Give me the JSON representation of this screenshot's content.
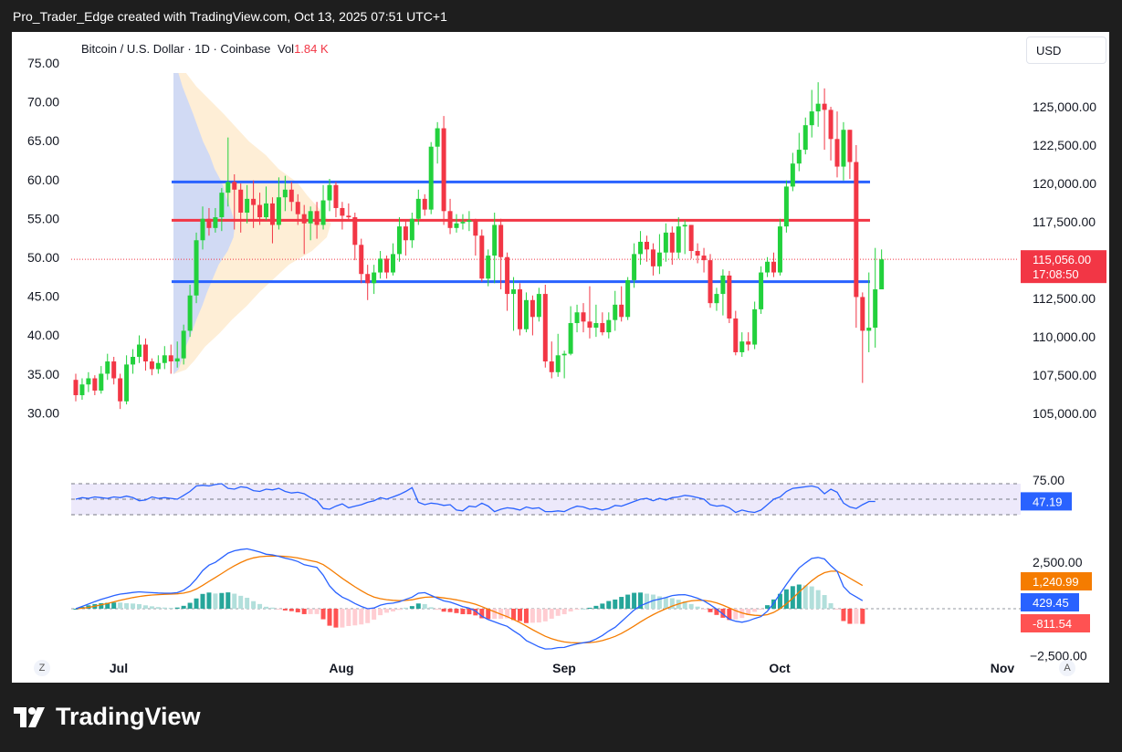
{
  "header": {
    "text": "Pro_Trader_Edge created with TradingView.com, Oct 13, 2025 07:51 UTC+1"
  },
  "legend": {
    "symbol": "Bitcoin / U.S. Dollar · 1D · Coinbase",
    "vol_label": "Vol",
    "vol_value": "1.84 K"
  },
  "currency_button": "USD",
  "brand": "TradingView",
  "buttons": {
    "left": "Z",
    "right": "A"
  },
  "colors": {
    "up": "#22d13c",
    "down": "#f23645",
    "support": "#2962ff",
    "pivot": "#f23645",
    "rsi": "#2962ff",
    "macd": "#2962ff",
    "signal": "#f57c00",
    "hist_up": "#26a69a",
    "hist_up_light": "#b2dfdb",
    "hist_down": "#ff5252",
    "hist_down_light": "#ffcdd2"
  },
  "chart_data": {
    "type": "candlestick",
    "x_labels": [
      "Jul",
      "Aug",
      "Sep",
      "Oct",
      "Nov"
    ],
    "left_axis": {
      "ticks": [
        "75.00",
        "70.00",
        "65.00",
        "60.00",
        "55.00",
        "50.00",
        "45.00",
        "40.00",
        "35.00",
        "30.00"
      ]
    },
    "right_axis": {
      "ticks": [
        "125,000.00",
        "122,500.00",
        "120,000.00",
        "117,500.00",
        "115,000.00",
        "112,500.00",
        "110,000.00",
        "107,500.00",
        "105,000.00"
      ],
      "range": [
        104000,
        127500
      ]
    },
    "last_price": {
      "value": "115,056.00",
      "countdown": "17:08:50",
      "numeric": 115056
    },
    "horizontal_lines": [
      {
        "value": 120100,
        "color": "#2962ff"
      },
      {
        "value": 117600,
        "color": "#f23645"
      },
      {
        "value": 113600,
        "color": "#2962ff"
      }
    ],
    "candles": [
      [
        107200,
        106200,
        107600,
        105800
      ],
      [
        106200,
        106900,
        107300,
        105900
      ],
      [
        106900,
        107300,
        107700,
        106400
      ],
      [
        107300,
        106500,
        107500,
        106200
      ],
      [
        106500,
        107600,
        108100,
        106300
      ],
      [
        107600,
        108400,
        108900,
        107200
      ],
      [
        108400,
        107300,
        108700,
        106900
      ],
      [
        107300,
        105800,
        107600,
        105300
      ],
      [
        105800,
        108200,
        108800,
        105600
      ],
      [
        108200,
        108700,
        109200,
        107600
      ],
      [
        108700,
        109500,
        110100,
        108300
      ],
      [
        109500,
        108400,
        109900,
        107800
      ],
      [
        108400,
        107900,
        108600,
        107500
      ],
      [
        107900,
        108300,
        108800,
        107600
      ],
      [
        108300,
        108800,
        109400,
        107900
      ],
      [
        108800,
        108400,
        109500,
        107600
      ],
      [
        108400,
        108600,
        109700,
        108000
      ],
      [
        108600,
        110400,
        110800,
        108200
      ],
      [
        110400,
        112700,
        113400,
        110000
      ],
      [
        112700,
        116300,
        116800,
        112200
      ],
      [
        116300,
        117700,
        118500,
        115700
      ],
      [
        117700,
        117100,
        118400,
        116600
      ],
      [
        117100,
        117800,
        118400,
        116800
      ],
      [
        117800,
        119400,
        119700,
        116900
      ],
      [
        119400,
        120100,
        123000,
        118500
      ],
      [
        120100,
        119600,
        120600,
        117000
      ],
      [
        119600,
        118100,
        120000,
        116800
      ],
      [
        118100,
        119000,
        119900,
        117400
      ],
      [
        119000,
        118600,
        120200,
        117100
      ],
      [
        118600,
        117800,
        119400,
        117300
      ],
      [
        117800,
        118700,
        119800,
        117600
      ],
      [
        118700,
        117300,
        119100,
        116100
      ],
      [
        117300,
        119100,
        120400,
        117000
      ],
      [
        119100,
        119600,
        120500,
        118200
      ],
      [
        119600,
        118800,
        120100,
        118200
      ],
      [
        118800,
        118000,
        119300,
        117300
      ],
      [
        118000,
        117400,
        118600,
        115400
      ],
      [
        117400,
        118200,
        118500,
        116300
      ],
      [
        118200,
        117300,
        118800,
        116400
      ],
      [
        117300,
        118900,
        119900,
        117000
      ],
      [
        118900,
        119900,
        120300,
        118200
      ],
      [
        119900,
        118400,
        120100,
        117800
      ],
      [
        118400,
        117900,
        118800,
        117000
      ],
      [
        117900,
        117800,
        118700,
        117600
      ],
      [
        117800,
        116000,
        118100,
        115000
      ],
      [
        116000,
        114100,
        116400,
        113500
      ],
      [
        114100,
        113500,
        114700,
        112400
      ],
      [
        113500,
        114200,
        114700,
        112800
      ],
      [
        114200,
        115100,
        115600,
        113800
      ],
      [
        115100,
        114200,
        115300,
        113800
      ],
      [
        114200,
        115400,
        116100,
        114000
      ],
      [
        115400,
        117200,
        117800,
        114900
      ],
      [
        117200,
        116300,
        117600,
        115300
      ],
      [
        116300,
        117700,
        118100,
        115800
      ],
      [
        117700,
        119000,
        119600,
        117300
      ],
      [
        119000,
        118300,
        119300,
        117900
      ],
      [
        118300,
        122400,
        122700,
        118000
      ],
      [
        122400,
        123600,
        124000,
        121300
      ],
      [
        123600,
        118200,
        124400,
        117300
      ],
      [
        118200,
        117100,
        119000,
        116700
      ],
      [
        117100,
        117400,
        118000,
        116800
      ],
      [
        117400,
        117500,
        118000,
        117000
      ],
      [
        117500,
        117600,
        118200,
        116900
      ],
      [
        117600,
        116600,
        117700,
        115300
      ],
      [
        116600,
        113800,
        117000,
        113600
      ],
      [
        113800,
        115300,
        115700,
        113300
      ],
      [
        115300,
        117300,
        118100,
        113500
      ],
      [
        117300,
        115200,
        117700,
        113100
      ],
      [
        115200,
        112800,
        115500,
        111700
      ],
      [
        112800,
        113100,
        113900,
        110400
      ],
      [
        113100,
        110500,
        113500,
        110100
      ],
      [
        110500,
        112400,
        112900,
        110300
      ],
      [
        112400,
        111300,
        112700,
        110100
      ],
      [
        111300,
        112800,
        113200,
        111000
      ],
      [
        112800,
        108400,
        113400,
        108000
      ],
      [
        108400,
        107700,
        109700,
        107300
      ],
      [
        107700,
        108800,
        110200,
        107400
      ],
      [
        108800,
        108900,
        109100,
        107300
      ],
      [
        108900,
        110900,
        112000,
        108800
      ],
      [
        110900,
        111600,
        112100,
        110300
      ],
      [
        111600,
        111000,
        112200,
        110300
      ],
      [
        111000,
        110600,
        113300,
        109900
      ],
      [
        110600,
        110900,
        112100,
        110000
      ],
      [
        110900,
        110300,
        111600,
        110100
      ],
      [
        110300,
        111100,
        111600,
        109900
      ],
      [
        111100,
        112100,
        113000,
        110400
      ],
      [
        112100,
        111300,
        113300,
        111000
      ],
      [
        111300,
        113700,
        113900,
        111100
      ],
      [
        113700,
        115400,
        116100,
        113200
      ],
      [
        115400,
        116200,
        116900,
        114700
      ],
      [
        116200,
        115700,
        116600,
        114900
      ],
      [
        115700,
        114600,
        116100,
        114000
      ],
      [
        114600,
        115500,
        116700,
        114100
      ],
      [
        115500,
        116800,
        117400,
        114900
      ],
      [
        116800,
        115500,
        117200,
        114700
      ],
      [
        115500,
        117200,
        117800,
        115100
      ],
      [
        117200,
        117300,
        117600,
        115400
      ],
      [
        117300,
        115600,
        117300,
        115100
      ],
      [
        115600,
        115300,
        116100,
        114800
      ],
      [
        115300,
        115000,
        115800,
        114200
      ],
      [
        115000,
        112200,
        115400,
        111900
      ],
      [
        112200,
        112800,
        113200,
        111700
      ],
      [
        112800,
        114000,
        114400,
        111400
      ],
      [
        114000,
        111200,
        114300,
        110900
      ],
      [
        111200,
        109000,
        111700,
        108800
      ],
      [
        109000,
        109700,
        110300,
        108700
      ],
      [
        109700,
        109500,
        110300,
        109100
      ],
      [
        109500,
        111800,
        112300,
        109200
      ],
      [
        111800,
        114200,
        114600,
        111500
      ],
      [
        114200,
        114900,
        115200,
        113900
      ],
      [
        114900,
        114200,
        115500,
        113900
      ],
      [
        114200,
        117200,
        117700,
        114000
      ],
      [
        117200,
        119800,
        120200,
        116800
      ],
      [
        119800,
        121300,
        122000,
        119500
      ],
      [
        121300,
        122200,
        123300,
        120800
      ],
      [
        122200,
        123800,
        124300,
        121900
      ],
      [
        123800,
        124700,
        126100,
        123000
      ],
      [
        124700,
        125200,
        126600,
        123700
      ],
      [
        125200,
        124800,
        126200,
        122200
      ],
      [
        124800,
        122900,
        125000,
        121500
      ],
      [
        122900,
        121100,
        124700,
        120400
      ],
      [
        121100,
        123500,
        124000,
        120200
      ],
      [
        123500,
        121400,
        123500,
        120300
      ],
      [
        121400,
        112600,
        122500,
        110600
      ],
      [
        112600,
        110400,
        112900,
        107000
      ],
      [
        110400,
        110600,
        114200,
        109000
      ],
      [
        110600,
        113100,
        115800,
        109300
      ],
      [
        113100,
        115056,
        115700,
        113300
      ]
    ],
    "rsi": {
      "value": "47.19",
      "numeric": 47.19,
      "upper": 70,
      "lower": 30,
      "mid": 50,
      "tick": "75.00",
      "values": [
        50,
        52,
        51,
        53,
        52,
        51,
        53,
        52,
        54,
        52,
        48,
        49,
        53,
        51,
        52,
        51,
        50,
        55,
        60,
        67,
        68,
        67,
        69,
        70,
        64,
        63,
        66,
        65,
        61,
        60,
        63,
        62,
        64,
        60,
        58,
        59,
        57,
        52,
        48,
        38,
        37,
        41,
        44,
        39,
        41,
        43,
        46,
        48,
        52,
        50,
        53,
        56,
        60,
        65,
        46,
        43,
        45,
        44,
        42,
        43,
        36,
        35,
        41,
        40,
        45,
        41,
        34,
        37,
        39,
        38,
        36,
        40,
        38,
        39,
        34,
        34,
        35,
        34,
        38,
        41,
        40,
        37,
        38,
        36,
        38,
        42,
        41,
        44,
        47,
        50,
        51,
        48,
        51,
        49,
        52,
        53,
        55,
        54,
        52,
        50,
        43,
        41,
        42,
        39,
        33,
        36,
        34,
        33,
        36,
        43,
        50,
        53,
        60,
        64,
        65,
        66,
        67,
        65,
        57,
        63,
        59,
        45,
        40,
        38,
        43,
        47,
        47
      ]
    },
    "macd": {
      "macd_value": "429.45",
      "signal_value": "1,240.99",
      "hist_value": "-811.54",
      "ticks": [
        "2,500.00",
        "−2,500.00"
      ],
      "range": [
        -2500,
        2500
      ],
      "macd": [
        0,
        120,
        250,
        380,
        500,
        600,
        700,
        780,
        820,
        870,
        900,
        880,
        860,
        840,
        830,
        830,
        860,
        990,
        1230,
        1600,
        2040,
        2330,
        2480,
        2720,
        2970,
        3100,
        3160,
        3200,
        3120,
        3030,
        2910,
        2880,
        2800,
        2700,
        2630,
        2520,
        2350,
        2280,
        2210,
        1790,
        1220,
        870,
        620,
        470,
        280,
        120,
        0,
        40,
        190,
        270,
        300,
        370,
        500,
        620,
        830,
        860,
        710,
        560,
        420,
        350,
        240,
        110,
        30,
        -120,
        -400,
        -580,
        -700,
        -830,
        -940,
        -1180,
        -1400,
        -1700,
        -1870,
        -2040,
        -2150,
        -2140,
        -2080,
        -2070,
        -1960,
        -1880,
        -1820,
        -1760,
        -1620,
        -1430,
        -1190,
        -990,
        -690,
        -380,
        -70,
        160,
        300,
        440,
        510,
        600,
        700,
        740,
        750,
        670,
        560,
        420,
        210,
        -20,
        -290,
        -560,
        -670,
        -720,
        -650,
        -520,
        -420,
        -130,
        300,
        800,
        1300,
        1770,
        2180,
        2450,
        2690,
        2740,
        2660,
        2300,
        2000,
        1180,
        830,
        630,
        429
      ]
    }
  }
}
